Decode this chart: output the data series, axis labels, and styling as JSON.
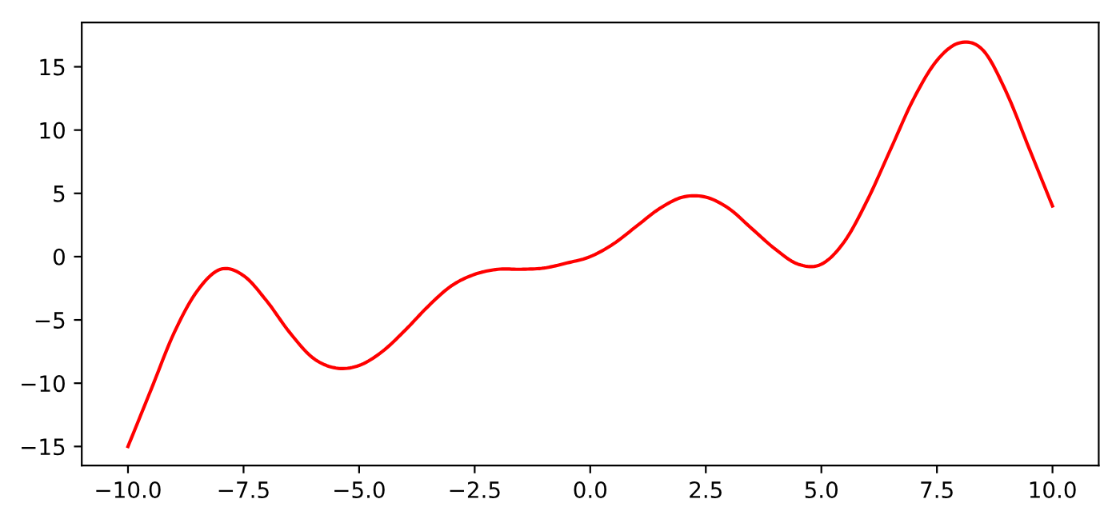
{
  "chart_data": {
    "type": "line",
    "x": [
      -10,
      -9.5,
      -9,
      -8.5,
      -8,
      -7.5,
      -7,
      -6.5,
      -6,
      -5.5,
      -5,
      -4.5,
      -4,
      -3.5,
      -3,
      -2.5,
      -2,
      -1.5,
      -1,
      -0.5,
      0,
      0.5,
      1,
      1.5,
      2,
      2.5,
      3,
      3.5,
      4,
      4.5,
      5,
      5.5,
      6,
      6.5,
      7,
      7.5,
      8,
      8.5,
      9,
      9.5,
      10
    ],
    "series": [
      {
        "color": "#ff0000",
        "values": [
          -15,
          -10.5,
          -6,
          -2.7,
          -1,
          -1.5,
          -3.5,
          -6,
          -8,
          -8.8,
          -8.6,
          -7.5,
          -5.8,
          -3.9,
          -2.3,
          -1.4,
          -1,
          -1,
          -0.9,
          -0.5,
          0,
          1,
          2.4,
          3.8,
          4.7,
          4.7,
          3.8,
          2.2,
          0.6,
          -0.6,
          -0.6,
          1.2,
          4.5,
          8.5,
          12.5,
          15.5,
          16.9,
          16.3,
          13,
          8.5,
          4
        ]
      }
    ],
    "xlim": [
      -11,
      11
    ],
    "ylim": [
      -16.5,
      18.5
    ],
    "xticks": [
      {
        "value": -10,
        "label": "−10.0"
      },
      -7.5,
      {
        "value": -5,
        "label": "−5.0"
      },
      -2.5,
      {
        "value": 0,
        "label": "0.0"
      },
      2.5,
      {
        "value": 5,
        "label": "5.0"
      },
      7.5,
      {
        "value": 10,
        "label": "10.0"
      }
    ],
    "yticks": [
      -15,
      -10,
      -5,
      0,
      5,
      10,
      15
    ],
    "grid": false,
    "legend": false,
    "line_style": "solid",
    "marker": "none"
  }
}
